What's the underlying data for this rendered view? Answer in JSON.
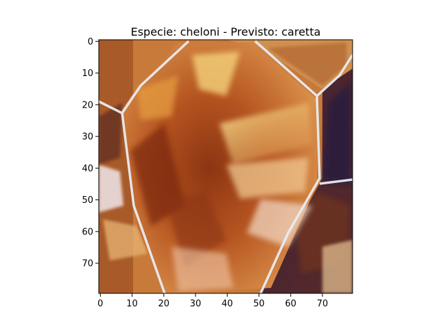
{
  "figure": {
    "title": "Especie: cheloni - Previsto: caretta",
    "colors": {
      "background": "#ffffff",
      "axis": "#000000",
      "shell_dark": "#7a2a10",
      "shell_mid": "#b8561f",
      "shell_light": "#e8a35a",
      "shell_highlight": "#f4d27a",
      "seam": "#e8ecf4",
      "gap_dark": "#2a1830"
    }
  },
  "chart_data": {
    "type": "image",
    "title": "Especie: cheloni - Previsto: caretta",
    "xlabel": "",
    "ylabel": "",
    "image_size": [
      80,
      80
    ],
    "xlim": [
      -0.5,
      79.5
    ],
    "ylim": [
      79.5,
      -0.5
    ],
    "x_ticks": [
      0,
      10,
      20,
      30,
      40,
      50,
      60,
      70
    ],
    "y_ticks": [
      0,
      10,
      20,
      30,
      40,
      50,
      60,
      70
    ],
    "grid": false,
    "subject": "close-up of turtle shell scutes"
  }
}
